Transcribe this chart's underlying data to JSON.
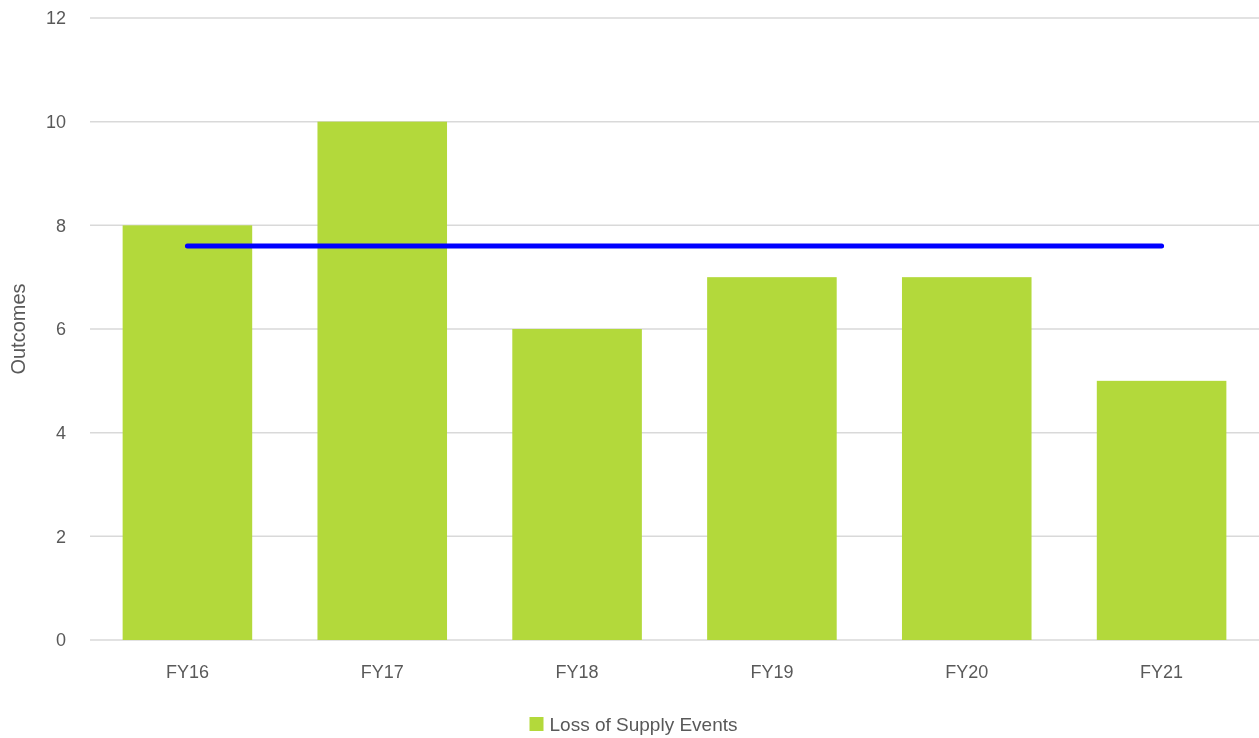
{
  "chart_data": {
    "type": "bar",
    "ylabel": "Outcomes",
    "categories": [
      "FY16",
      "FY17",
      "FY18",
      "FY19",
      "FY20",
      "FY21"
    ],
    "series": [
      {
        "name": "Loss of Supply Events",
        "color": "#b3d93b",
        "values": [
          8,
          10,
          6,
          7,
          7,
          5
        ]
      },
      {
        "type": "line",
        "color": "#0000ff",
        "values": [
          7.6,
          7.6,
          7.6,
          7.6,
          7.6,
          7.6
        ]
      }
    ],
    "ylim": [
      0,
      12
    ],
    "yticks": [
      0,
      2,
      4,
      6,
      8,
      10,
      12
    ],
    "grid": "y",
    "legend": "bottom",
    "marker": "none",
    "line_style": "solid"
  }
}
